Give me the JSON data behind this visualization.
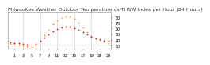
{
  "title": "Milwaukee Weather Outdoor Temperature vs THSW Index per Hour (24 Hours)",
  "hours": [
    0,
    1,
    2,
    3,
    4,
    5,
    6,
    7,
    8,
    9,
    10,
    11,
    12,
    13,
    14,
    15,
    16,
    17,
    18,
    19,
    20,
    21,
    22,
    23
  ],
  "temp": [
    36,
    35,
    34,
    33,
    32,
    31,
    33,
    38,
    44,
    50,
    55,
    59,
    62,
    63,
    63,
    61,
    58,
    54,
    50,
    46,
    43,
    41,
    39,
    38
  ],
  "thsw": [
    33,
    32,
    31,
    30,
    29,
    28,
    30,
    37,
    48,
    58,
    67,
    74,
    79,
    82,
    81,
    77,
    70,
    62,
    54,
    47,
    43,
    40,
    37,
    35
  ],
  "temp_color": "#cc0000",
  "thsw_color": "#ff8800",
  "bg_color": "#ffffff",
  "grid_color": "#bbbbbb",
  "ylim": [
    25,
    90
  ],
  "tick_hours": [
    1,
    3,
    5,
    7,
    9,
    11,
    13,
    15,
    17,
    19,
    21,
    23
  ],
  "vgrid_hours": [
    3,
    7,
    11,
    15,
    19,
    23
  ],
  "right_yticks": [
    30,
    40,
    50,
    60,
    70,
    80
  ],
  "title_fontsize": 4.5,
  "tick_fontsize": 3.5
}
